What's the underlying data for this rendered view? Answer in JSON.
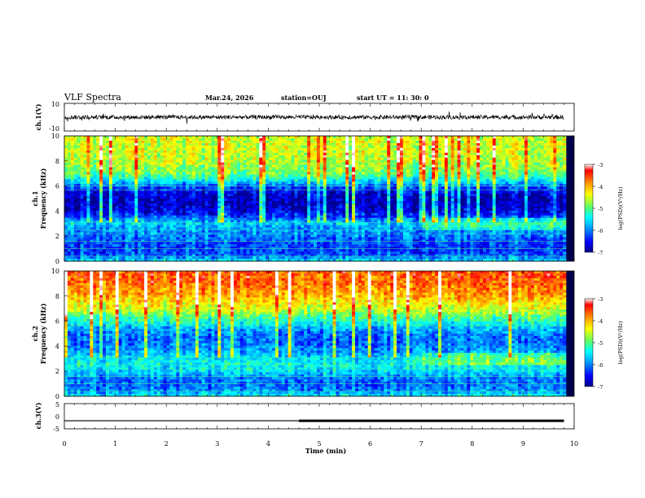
{
  "header": {
    "title": "VLF Spectra",
    "date": "Mar.24, 2026",
    "station": "station=OUJ",
    "start_ut": "start  UT =   11: 30: 0"
  },
  "chart_data": [
    {
      "type": "line",
      "name": "ch1-waveform",
      "ylabel": "ch.1(V)",
      "ylim": [
        -10,
        10
      ],
      "yticks": [
        "10",
        "-10"
      ],
      "x_range_min": [
        0,
        9.8
      ],
      "description_values": {
        "baseline_v": 0,
        "typical_amplitude_v": 1.5
      }
    },
    {
      "type": "heatmap",
      "name": "ch1-spectrogram",
      "ylabel": "ch.1\nFrequency (kHz)",
      "xlim": [
        0,
        10
      ],
      "ylim": [
        0,
        10
      ],
      "yticks": [
        "0",
        "2",
        "4",
        "6",
        "8",
        "10"
      ],
      "colorbar": {
        "min": -7,
        "max": -3,
        "ticks": [
          "-3",
          "-4",
          "-5",
          "-6",
          "-7"
        ],
        "label": "log(PSD)(V²/Hz)"
      },
      "profile_khz": [
        {
          "f": 0.0,
          "v": -5.5
        },
        {
          "f": 0.5,
          "v": -6.2
        },
        {
          "f": 1.0,
          "v": -6.3
        },
        {
          "f": 1.5,
          "v": -6.2
        },
        {
          "f": 2.0,
          "v": -6.0
        },
        {
          "f": 2.5,
          "v": -5.9
        },
        {
          "f": 3.0,
          "v": -5.6
        },
        {
          "f": 3.5,
          "v": -6.2
        },
        {
          "f": 4.0,
          "v": -6.6
        },
        {
          "f": 4.5,
          "v": -6.8
        },
        {
          "f": 5.0,
          "v": -6.8
        },
        {
          "f": 5.5,
          "v": -6.6
        },
        {
          "f": 6.0,
          "v": -6.1
        },
        {
          "f": 6.5,
          "v": -5.4
        },
        {
          "f": 7.0,
          "v": -4.9
        },
        {
          "f": 8.0,
          "v": -4.6
        },
        {
          "f": 9.0,
          "v": -4.5
        },
        {
          "f": 10.0,
          "v": -4.5
        }
      ]
    },
    {
      "type": "heatmap",
      "name": "ch2-spectrogram",
      "ylabel": "ch.2\nFrequency (kHz)",
      "xlim": [
        0,
        10
      ],
      "ylim": [
        0,
        10
      ],
      "yticks": [
        "0",
        "2",
        "4",
        "6",
        "8",
        "10"
      ],
      "colorbar": {
        "min": -7,
        "max": -3,
        "ticks": [
          "-3",
          "-4",
          "-5",
          "-6",
          "-7"
        ],
        "label": "log(PSD)(V²/Hz)"
      },
      "profile_khz": [
        {
          "f": 0.0,
          "v": -5.4
        },
        {
          "f": 0.5,
          "v": -6.0
        },
        {
          "f": 1.0,
          "v": -6.1
        },
        {
          "f": 1.5,
          "v": -6.0
        },
        {
          "f": 2.0,
          "v": -5.6
        },
        {
          "f": 2.5,
          "v": -5.4
        },
        {
          "f": 3.0,
          "v": -5.5
        },
        {
          "f": 3.5,
          "v": -5.8
        },
        {
          "f": 4.0,
          "v": -6.0
        },
        {
          "f": 4.5,
          "v": -6.1
        },
        {
          "f": 5.0,
          "v": -6.0
        },
        {
          "f": 5.5,
          "v": -5.7
        },
        {
          "f": 6.0,
          "v": -5.3
        },
        {
          "f": 6.5,
          "v": -4.9
        },
        {
          "f": 7.0,
          "v": -4.5
        },
        {
          "f": 8.0,
          "v": -4.0
        },
        {
          "f": 9.0,
          "v": -3.7
        },
        {
          "f": 10.0,
          "v": -3.6
        }
      ]
    },
    {
      "type": "line",
      "name": "ch3-waveform",
      "ylabel": "ch.3(V)",
      "ylim": [
        -5,
        5
      ],
      "yticks": [
        "5",
        "0",
        "-5"
      ],
      "segments": [
        {
          "x0": 0,
          "x1": 4.6,
          "y": -1.8,
          "weight": "thin"
        },
        {
          "x0": 4.6,
          "x1": 9.8,
          "y": -1.8,
          "weight": "thick"
        }
      ]
    }
  ],
  "xaxis": {
    "label": "Time (min)",
    "ticks": [
      "0",
      "1",
      "2",
      "3",
      "4",
      "5",
      "6",
      "7",
      "8",
      "9",
      "10"
    ],
    "xlim": [
      0,
      10
    ]
  },
  "colors": {
    "colormap": [
      "#000088",
      "#0000ff",
      "#00a0ff",
      "#00ffff",
      "#60ff60",
      "#ffff00",
      "#ff8800",
      "#ff0000",
      "#ffffff"
    ]
  }
}
